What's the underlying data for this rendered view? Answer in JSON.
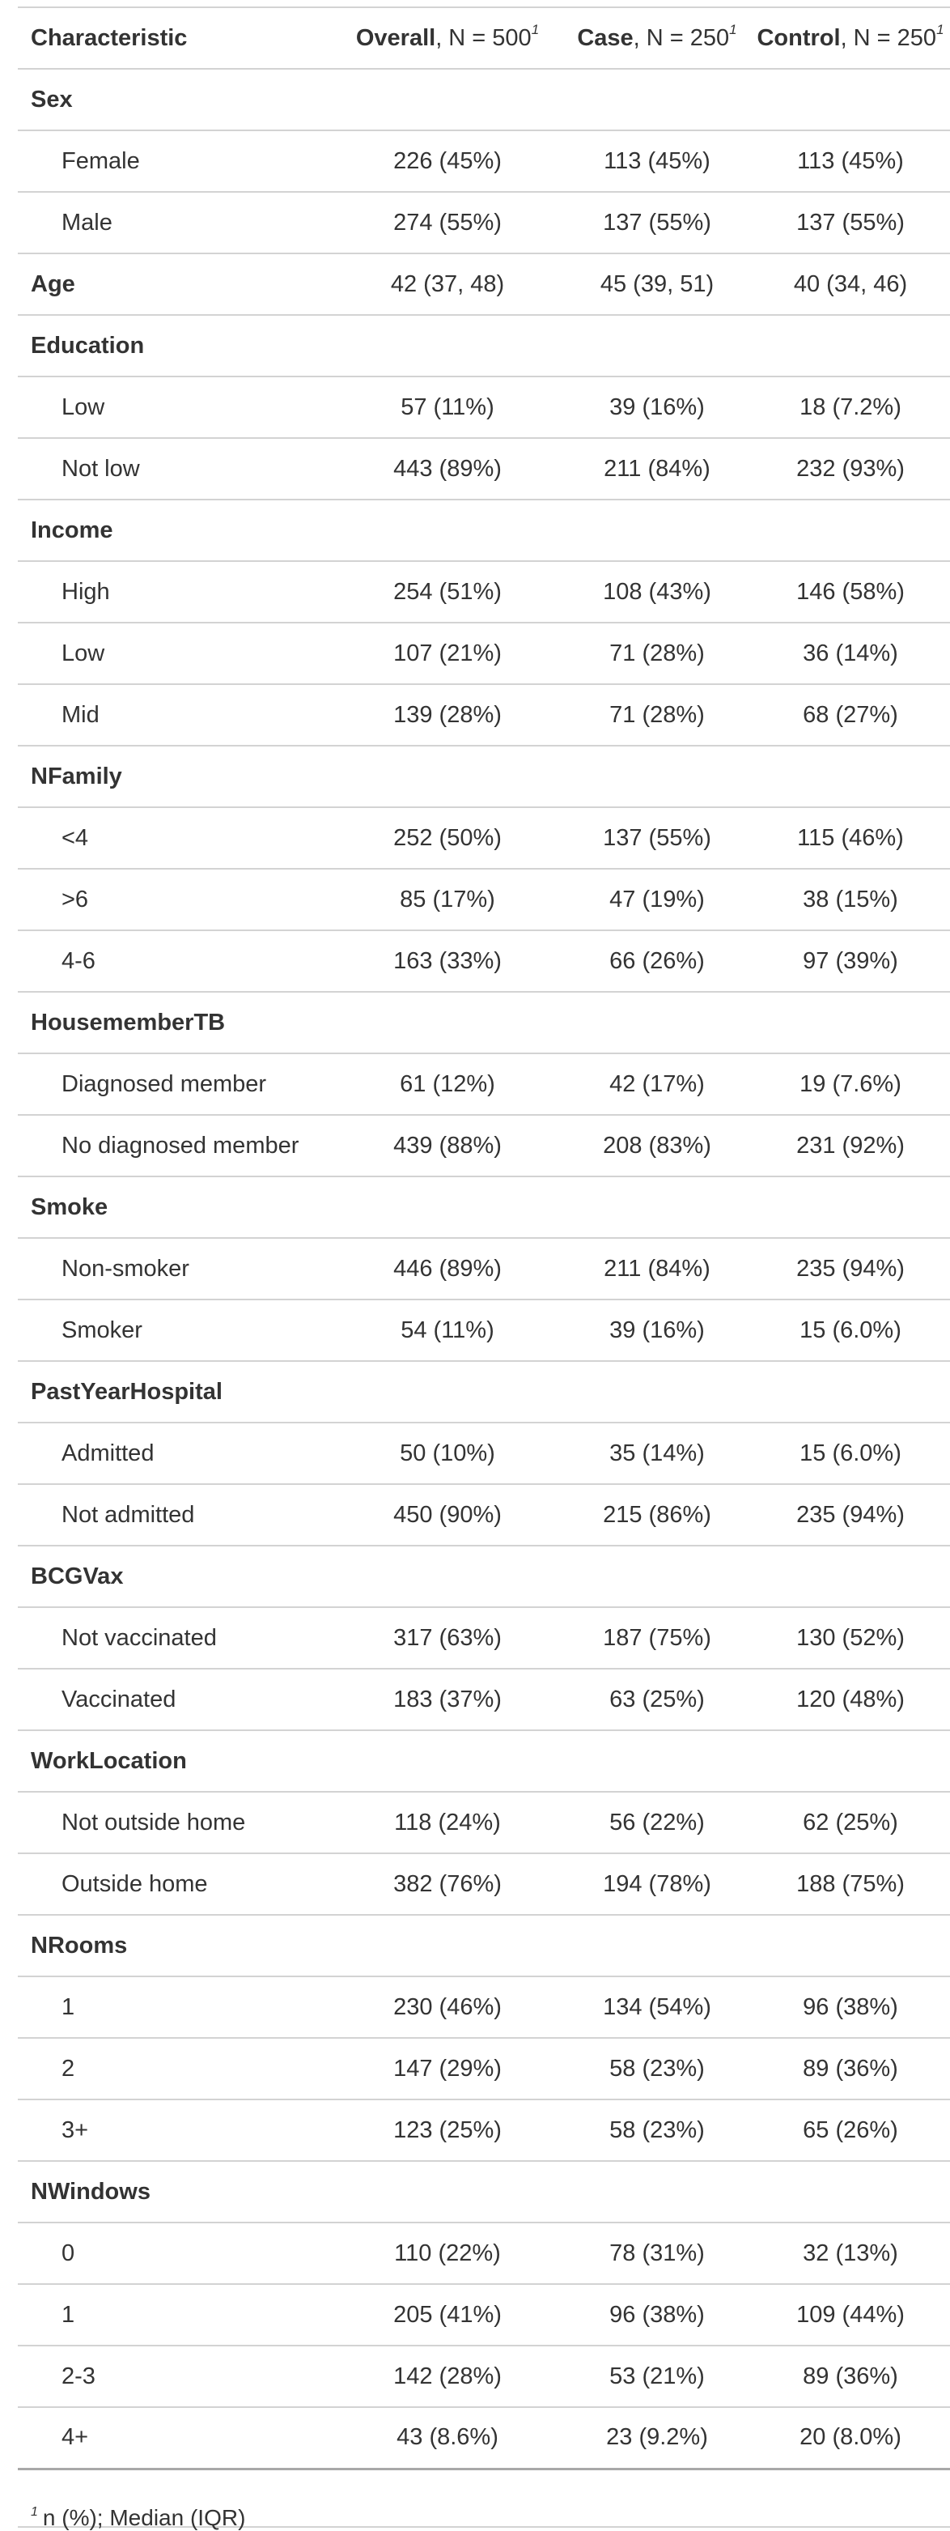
{
  "header": {
    "characteristic": "Characteristic",
    "columns": [
      {
        "name": "Overall",
        "n_text": ", N = 500",
        "footnote_mark": "1"
      },
      {
        "name": "Case",
        "n_text": ", N = 250",
        "footnote_mark": "1"
      },
      {
        "name": "Control",
        "n_text": ", N = 250",
        "footnote_mark": "1"
      }
    ]
  },
  "rows": [
    {
      "type": "var",
      "label": "Sex",
      "values": [
        "",
        "",
        ""
      ]
    },
    {
      "type": "level",
      "label": "Female",
      "values": [
        "226 (45%)",
        "113 (45%)",
        "113 (45%)"
      ]
    },
    {
      "type": "level",
      "label": "Male",
      "values": [
        "274 (55%)",
        "137 (55%)",
        "137 (55%)"
      ]
    },
    {
      "type": "var",
      "label": "Age",
      "values": [
        "42 (37, 48)",
        "45 (39, 51)",
        "40 (34, 46)"
      ]
    },
    {
      "type": "var",
      "label": "Education",
      "values": [
        "",
        "",
        ""
      ]
    },
    {
      "type": "level",
      "label": "Low",
      "values": [
        "57 (11%)",
        "39 (16%)",
        "18 (7.2%)"
      ]
    },
    {
      "type": "level",
      "label": "Not low",
      "values": [
        "443 (89%)",
        "211 (84%)",
        "232 (93%)"
      ]
    },
    {
      "type": "var",
      "label": "Income",
      "values": [
        "",
        "",
        ""
      ]
    },
    {
      "type": "level",
      "label": "High",
      "values": [
        "254 (51%)",
        "108 (43%)",
        "146 (58%)"
      ]
    },
    {
      "type": "level",
      "label": "Low",
      "values": [
        "107 (21%)",
        "71 (28%)",
        "36 (14%)"
      ]
    },
    {
      "type": "level",
      "label": "Mid",
      "values": [
        "139 (28%)",
        "71 (28%)",
        "68 (27%)"
      ]
    },
    {
      "type": "var",
      "label": "NFamily",
      "values": [
        "",
        "",
        ""
      ]
    },
    {
      "type": "level",
      "label": "<4",
      "values": [
        "252 (50%)",
        "137 (55%)",
        "115 (46%)"
      ]
    },
    {
      "type": "level",
      "label": ">6",
      "values": [
        "85 (17%)",
        "47 (19%)",
        "38 (15%)"
      ]
    },
    {
      "type": "level",
      "label": "4-6",
      "values": [
        "163 (33%)",
        "66 (26%)",
        "97 (39%)"
      ]
    },
    {
      "type": "var",
      "label": "HousememberTB",
      "values": [
        "",
        "",
        ""
      ]
    },
    {
      "type": "level",
      "label": "Diagnosed member",
      "values": [
        "61 (12%)",
        "42 (17%)",
        "19 (7.6%)"
      ]
    },
    {
      "type": "level",
      "label": "No diagnosed member",
      "values": [
        "439 (88%)",
        "208 (83%)",
        "231 (92%)"
      ]
    },
    {
      "type": "var",
      "label": "Smoke",
      "values": [
        "",
        "",
        ""
      ]
    },
    {
      "type": "level",
      "label": "Non-smoker",
      "values": [
        "446 (89%)",
        "211 (84%)",
        "235 (94%)"
      ]
    },
    {
      "type": "level",
      "label": "Smoker",
      "values": [
        "54 (11%)",
        "39 (16%)",
        "15 (6.0%)"
      ]
    },
    {
      "type": "var",
      "label": "PastYearHospital",
      "values": [
        "",
        "",
        ""
      ]
    },
    {
      "type": "level",
      "label": "Admitted",
      "values": [
        "50 (10%)",
        "35 (14%)",
        "15 (6.0%)"
      ]
    },
    {
      "type": "level",
      "label": "Not admitted",
      "values": [
        "450 (90%)",
        "215 (86%)",
        "235 (94%)"
      ]
    },
    {
      "type": "var",
      "label": "BCGVax",
      "values": [
        "",
        "",
        ""
      ]
    },
    {
      "type": "level",
      "label": "Not vaccinated",
      "values": [
        "317 (63%)",
        "187 (75%)",
        "130 (52%)"
      ]
    },
    {
      "type": "level",
      "label": "Vaccinated",
      "values": [
        "183 (37%)",
        "63 (25%)",
        "120 (48%)"
      ]
    },
    {
      "type": "var",
      "label": "WorkLocation",
      "values": [
        "",
        "",
        ""
      ]
    },
    {
      "type": "level",
      "label": "Not outside home",
      "values": [
        "118 (24%)",
        "56 (22%)",
        "62 (25%)"
      ]
    },
    {
      "type": "level",
      "label": "Outside home",
      "values": [
        "382 (76%)",
        "194 (78%)",
        "188 (75%)"
      ]
    },
    {
      "type": "var",
      "label": "NRooms",
      "values": [
        "",
        "",
        ""
      ]
    },
    {
      "type": "level",
      "label": "1",
      "values": [
        "230 (46%)",
        "134 (54%)",
        "96 (38%)"
      ]
    },
    {
      "type": "level",
      "label": "2",
      "values": [
        "147 (29%)",
        "58 (23%)",
        "89 (36%)"
      ]
    },
    {
      "type": "level",
      "label": "3+",
      "values": [
        "123 (25%)",
        "58 (23%)",
        "65 (26%)"
      ]
    },
    {
      "type": "var",
      "label": "NWindows",
      "values": [
        "",
        "",
        ""
      ]
    },
    {
      "type": "level",
      "label": "0",
      "values": [
        "110 (22%)",
        "78 (31%)",
        "32 (13%)"
      ]
    },
    {
      "type": "level",
      "label": "1",
      "values": [
        "205 (41%)",
        "96 (38%)",
        "109 (44%)"
      ]
    },
    {
      "type": "level",
      "label": "2-3",
      "values": [
        "142 (28%)",
        "53 (21%)",
        "89 (36%)"
      ]
    },
    {
      "type": "level",
      "label": "4+",
      "values": [
        "43 (8.6%)",
        "23 (9.2%)",
        "20 (8.0%)"
      ]
    }
  ],
  "footnote": {
    "mark": "1",
    "text": "n (%); Median (IQR)"
  }
}
